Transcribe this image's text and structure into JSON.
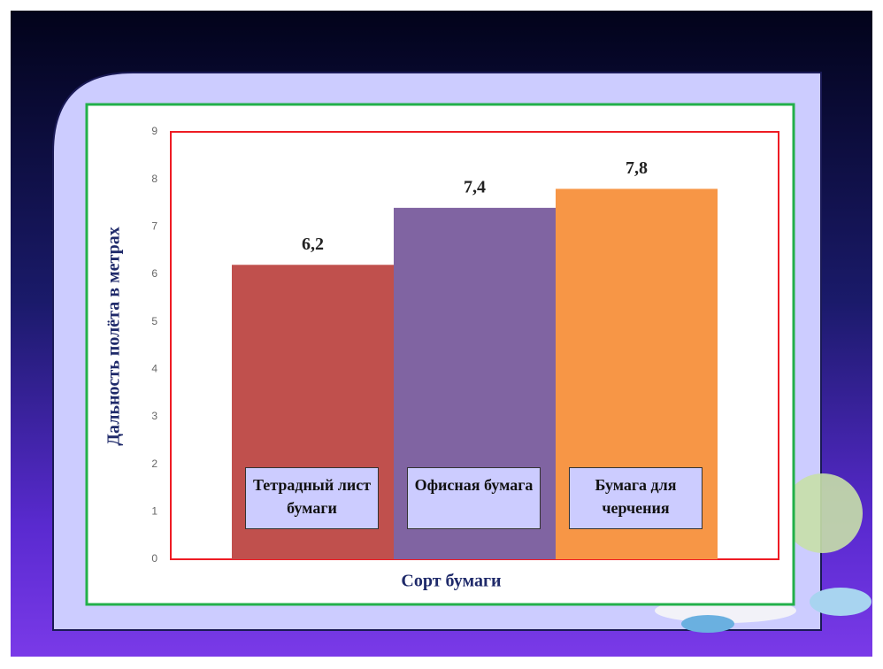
{
  "chart_data": {
    "type": "bar",
    "y_label": "Дальность полёта в метрах",
    "x_label": "Сорт бумаги",
    "categories": [
      "Тетрадный лист бумаги",
      "Офисная бумага",
      "Бумага для черчения"
    ],
    "values": [
      6.2,
      7.4,
      7.8
    ],
    "value_labels": [
      "6,2",
      "7,4",
      "7,8"
    ],
    "colors": [
      "#c0504d",
      "#8064a2",
      "#f79646"
    ],
    "ylim": [
      0,
      9
    ],
    "yticks": [
      0,
      1,
      2,
      3,
      4,
      5,
      6,
      7,
      8,
      9
    ]
  }
}
